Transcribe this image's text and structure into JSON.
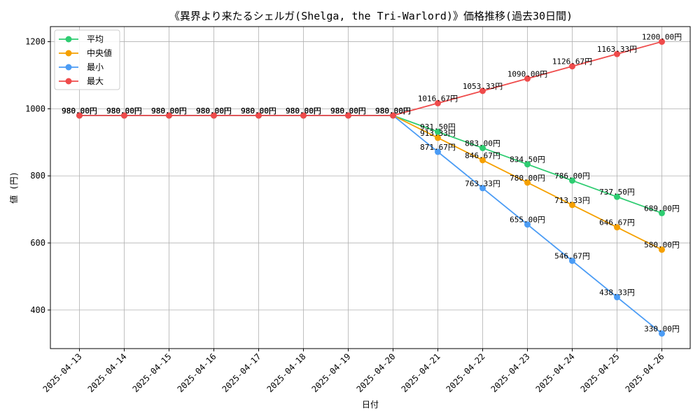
{
  "chart_data": {
    "type": "line",
    "title": "《異界より来たるシェルガ(Shelga, the Tri-Warlord)》価格推移(過去30日間)",
    "xlabel": "日付",
    "ylabel": "値 (円)",
    "ylim": [
      285,
      1245
    ],
    "yticks": [
      400,
      600,
      800,
      1000,
      1200
    ],
    "grid": true,
    "legend_position": "top-left",
    "categories": [
      "2025-04-13",
      "2025-04-14",
      "2025-04-15",
      "2025-04-16",
      "2025-04-17",
      "2025-04-18",
      "2025-04-19",
      "2025-04-20",
      "2025-04-21",
      "2025-04-22",
      "2025-04-23",
      "2025-04-24",
      "2025-04-25",
      "2025-04-26"
    ],
    "series": [
      {
        "name": "平均",
        "color": "#2ecc71",
        "values": [
          980,
          980,
          980,
          980,
          980,
          980,
          980,
          980,
          931.5,
          883,
          834.5,
          786,
          737.5,
          689
        ],
        "labels": [
          "980.00円",
          "980.00円",
          "980.00円",
          "980.00円",
          "980.00円",
          "980.00円",
          "980.00円",
          "980.00円",
          "931.50円",
          "883.00円",
          "834.50円",
          "786.00円",
          "737.50円",
          "689.00円"
        ]
      },
      {
        "name": "中央値",
        "color": "#f5a000",
        "values": [
          980,
          980,
          980,
          980,
          980,
          980,
          980,
          980,
          913.33,
          846.67,
          780,
          713.33,
          646.67,
          580
        ],
        "labels": [
          "980.00円",
          "980.00円",
          "980.00円",
          "980.00円",
          "980.00円",
          "980.00円",
          "980.00円",
          "980.00円",
          "913.33円",
          "846.67円",
          "780.00円",
          "713.33円",
          "646.67円",
          "580.00円"
        ]
      },
      {
        "name": "最小",
        "color": "#4b9cf5",
        "values": [
          980,
          980,
          980,
          980,
          980,
          980,
          980,
          980,
          871.67,
          763.33,
          655,
          546.67,
          438.33,
          330
        ],
        "labels": [
          "980.00円",
          "980.00円",
          "980.00円",
          "980.00円",
          "980.00円",
          "980.00円",
          "980.00円",
          "980.00円",
          "871.67円",
          "763.33円",
          "655.00円",
          "546.67円",
          "438.33円",
          "330.00円"
        ]
      },
      {
        "name": "最大",
        "color": "#ef4b4b",
        "values": [
          980,
          980,
          980,
          980,
          980,
          980,
          980,
          980,
          1016.67,
          1053.33,
          1090,
          1126.67,
          1163.33,
          1200
        ],
        "labels": [
          "980.00円",
          "980.00円",
          "980.00円",
          "980.00円",
          "980.00円",
          "980.00円",
          "980.00円",
          "980.00円",
          "1016.67円",
          "1053.33円",
          "1090.00円",
          "1126.67円",
          "1163.33円",
          "1200.00円"
        ]
      }
    ]
  }
}
